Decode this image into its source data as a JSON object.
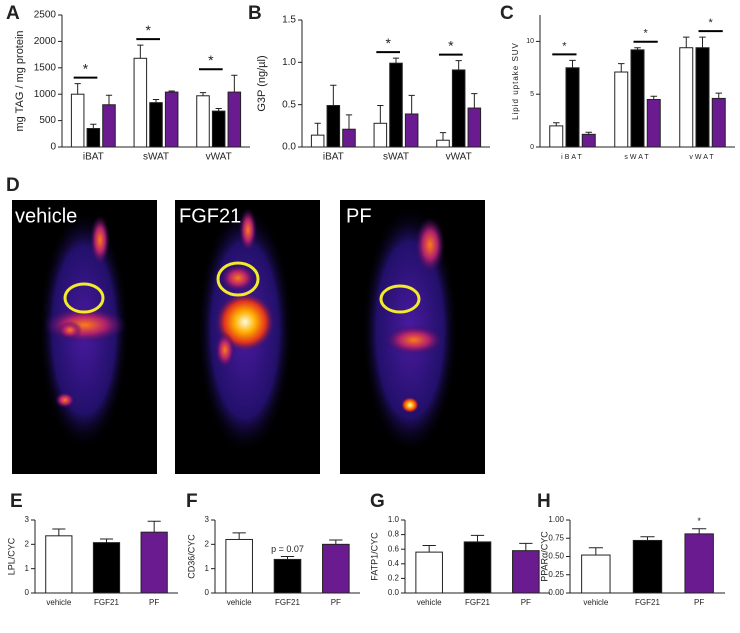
{
  "chart_data": [
    {
      "type": "bar",
      "panel": "A",
      "ylabel": "mg TAG / mg protein",
      "categories": [
        "iBAT",
        "sWAT",
        "vWAT"
      ],
      "series": [
        {
          "color": "#ffffff",
          "values": [
            1000,
            1680,
            970
          ],
          "errors": [
            200,
            250,
            60
          ]
        },
        {
          "color": "#000000",
          "values": [
            350,
            840,
            680
          ],
          "errors": [
            80,
            60,
            50
          ]
        },
        {
          "color": "#6a1b8f",
          "values": [
            800,
            1040,
            1040
          ],
          "errors": [
            180,
            20,
            320
          ]
        }
      ],
      "significance": [
        "*",
        "*",
        "*"
      ],
      "ylim": [
        0,
        2500
      ],
      "yticks": [
        0,
        500,
        1000,
        1500,
        2000,
        2500
      ]
    },
    {
      "type": "bar",
      "panel": "B",
      "ylabel": "G3P (ng/µl)",
      "categories": [
        "iBAT",
        "sWAT",
        "vWAT"
      ],
      "series": [
        {
          "color": "#ffffff",
          "values": [
            0.14,
            0.28,
            0.08
          ],
          "errors": [
            0.14,
            0.21,
            0.09
          ]
        },
        {
          "color": "#000000",
          "values": [
            0.49,
            0.99,
            0.91
          ],
          "errors": [
            0.24,
            0.06,
            0.11
          ]
        },
        {
          "color": "#6a1b8f",
          "values": [
            0.21,
            0.39,
            0.46
          ],
          "errors": [
            0.17,
            0.22,
            0.17
          ]
        }
      ],
      "significance": [
        null,
        "*",
        "*"
      ],
      "ylim": [
        0,
        1.5
      ],
      "yticks": [
        {
          "value": 0,
          "label": "0.0"
        },
        0.5,
        {
          "value": 1,
          "label": "1.0"
        },
        1.5
      ]
    },
    {
      "type": "bar",
      "panel": "C",
      "ylabel": "Lipid uptake SUV",
      "categories": [
        "iBAT",
        "sWAT",
        "vWAT"
      ],
      "series": [
        {
          "color": "#ffffff",
          "values": [
            2,
            7.1,
            9.4
          ],
          "errors": [
            0.3,
            0.8,
            1.0
          ]
        },
        {
          "color": "#000000",
          "values": [
            7.5,
            9.2,
            9.4
          ],
          "errors": [
            0.7,
            0.2,
            1.0
          ]
        },
        {
          "color": "#6a1b8f",
          "values": [
            1.2,
            4.5,
            4.6
          ],
          "errors": [
            0.2,
            0.3,
            0.5
          ]
        }
      ],
      "significance": [
        "*",
        "*",
        "*"
      ],
      "ylim": [
        0,
        12.5
      ],
      "yticks": [
        0,
        5,
        10
      ]
    },
    {
      "type": "bar",
      "panel": "E",
      "ylabel": "LPL/CYC",
      "categories": [
        "vehicle",
        "FGF21",
        "PF"
      ],
      "values": [
        2.35,
        2.07,
        2.5
      ],
      "errors": [
        0.28,
        0.15,
        0.45
      ],
      "colors": [
        "#ffffff",
        "#000000",
        "#6a1b8f"
      ],
      "significance": [
        null,
        null,
        null
      ],
      "ylim": [
        0,
        3
      ],
      "yticks": [
        0,
        1,
        2,
        3
      ]
    },
    {
      "type": "bar",
      "panel": "F",
      "ylabel": "CD36/CYC",
      "categories": [
        "vehicle",
        "FGF21",
        "PF"
      ],
      "values": [
        2.2,
        1.38,
        2.0
      ],
      "errors": [
        0.27,
        0.12,
        0.18
      ],
      "colors": [
        "#ffffff",
        "#000000",
        "#6a1b8f"
      ],
      "significance": [
        null,
        "p = 0.07",
        null
      ],
      "ylim": [
        0,
        3
      ],
      "yticks": [
        0,
        1,
        2,
        3
      ]
    },
    {
      "type": "bar",
      "panel": "G",
      "ylabel": "FATP1/CYC",
      "categories": [
        "vehicle",
        "FGF21",
        "PF"
      ],
      "values": [
        0.56,
        0.7,
        0.58
      ],
      "errors": [
        0.09,
        0.09,
        0.1
      ],
      "colors": [
        "#ffffff",
        "#000000",
        "#6a1b8f"
      ],
      "significance": [
        null,
        null,
        null
      ],
      "ylim": [
        0,
        1
      ],
      "yticks": [
        {
          "value": 0,
          "label": "0.0"
        },
        0.2,
        0.4,
        0.6,
        0.8,
        {
          "value": 1,
          "label": "1.0"
        }
      ]
    },
    {
      "type": "bar",
      "panel": "H",
      "ylabel": "PPARα/CYC",
      "categories": [
        "vehicle",
        "FGF21",
        "PF"
      ],
      "values": [
        0.52,
        0.72,
        0.81
      ],
      "errors": [
        0.1,
        0.05,
        0.07
      ],
      "colors": [
        "#ffffff",
        "#000000",
        "#6a1b8f"
      ],
      "significance": [
        null,
        null,
        "*"
      ],
      "ylim": [
        0,
        1
      ],
      "yticks": [
        {
          "value": 0,
          "label": "0.00"
        },
        {
          "value": 0.25,
          "label": "0.25"
        },
        {
          "value": 0.5,
          "label": "0.50"
        },
        {
          "value": 0.75,
          "label": "0.75"
        },
        {
          "value": 1,
          "label": "1.00"
        }
      ]
    }
  ],
  "figure_d": {
    "panel": "D",
    "labels": [
      "vehicle",
      "FGF21",
      "PF"
    ]
  }
}
